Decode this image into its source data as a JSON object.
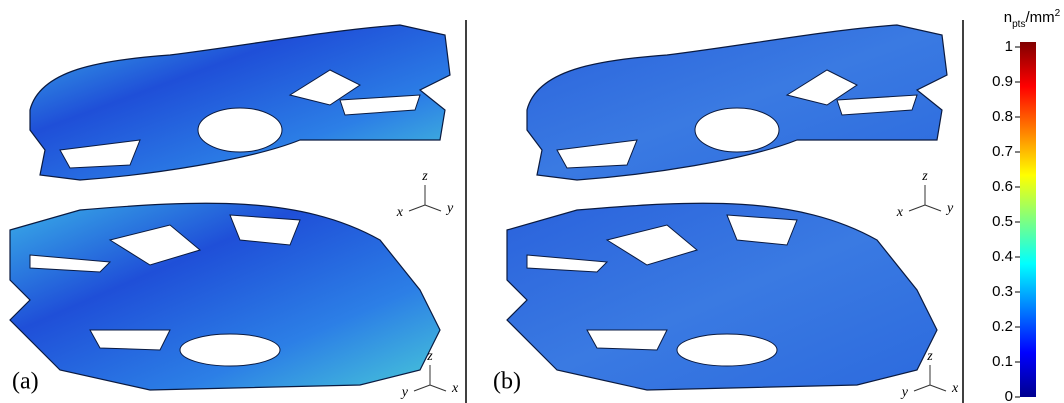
{
  "panels": [
    {
      "label": "(a)",
      "triads": [
        {
          "z": "z",
          "left": "x",
          "right": "y"
        },
        {
          "z": "z",
          "left": "y",
          "right": "x"
        }
      ]
    },
    {
      "label": "(b)",
      "triads": [
        {
          "z": "z",
          "left": "x",
          "right": "y"
        },
        {
          "z": "z",
          "left": "y",
          "right": "x"
        }
      ]
    }
  ],
  "colorbar": {
    "label_base": "n",
    "label_sub": "pts",
    "label_unit": "/mm",
    "label_sup": "2",
    "lim": [
      0,
      1
    ],
    "ticks": [
      0,
      0.1,
      0.2,
      0.3,
      0.4,
      0.5,
      0.6,
      0.7,
      0.8,
      0.9,
      1
    ]
  }
}
